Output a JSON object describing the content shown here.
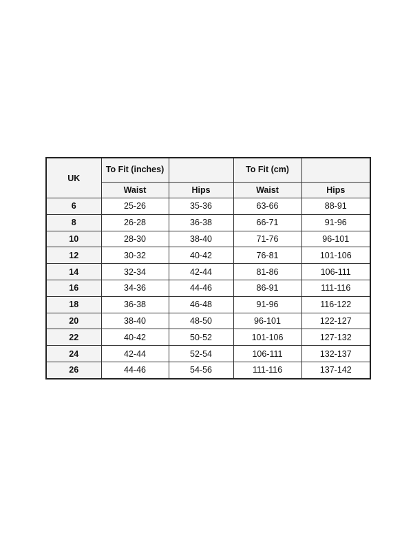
{
  "header": {
    "uk": "UK",
    "inches_group": "To Fit (inches)",
    "cm_group": "To Fit (cm)",
    "waist": "Waist",
    "hips": "Hips"
  },
  "rows": [
    [
      "6",
      "25-26",
      "35-36",
      "63-66",
      "88-91"
    ],
    [
      "8",
      "26-28",
      "36-38",
      "66-71",
      "91-96"
    ],
    [
      "10",
      "28-30",
      "38-40",
      "71-76",
      "96-101"
    ],
    [
      "12",
      "30-32",
      "40-42",
      "76-81",
      "101-106"
    ],
    [
      "14",
      "32-34",
      "42-44",
      "81-86",
      "106-111"
    ],
    [
      "16",
      "34-36",
      "44-46",
      "86-91",
      "111-116"
    ],
    [
      "18",
      "36-38",
      "46-48",
      "91-96",
      "116-122"
    ],
    [
      "20",
      "38-40",
      "48-50",
      "96-101",
      "122-127"
    ],
    [
      "22",
      "40-42",
      "50-52",
      "101-106",
      "127-132"
    ],
    [
      "24",
      "42-44",
      "52-54",
      "106-111",
      "132-137"
    ],
    [
      "26",
      "44-46",
      "54-56",
      "111-116",
      "137-142"
    ]
  ]
}
